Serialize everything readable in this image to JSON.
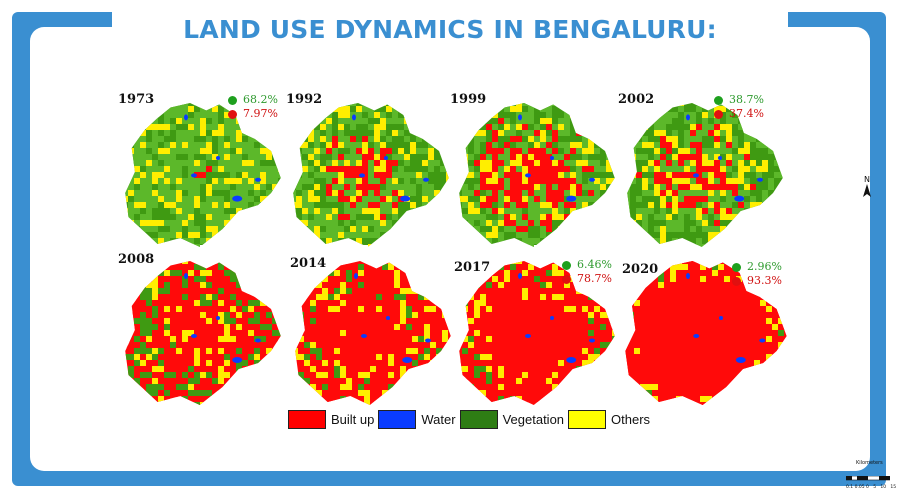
{
  "title": "LAND USE DYNAMICS IN BENGALURU:",
  "maps": [
    {
      "year": "1973",
      "vegetation_pct": "68.2%",
      "builtup_pct": "7.97%",
      "builtup_level": 0.08
    },
    {
      "year": "1992",
      "builtup_level": 0.32
    },
    {
      "year": "1999",
      "builtup_level": 0.45
    },
    {
      "year": "2002",
      "vegetation_pct": "38.7%",
      "builtup_pct": "37.4%",
      "builtup_level": 0.37
    },
    {
      "year": "2008",
      "builtup_level": 0.58
    },
    {
      "year": "2014",
      "builtup_level": 0.7
    },
    {
      "year": "2017",
      "vegetation_pct": "6.46%",
      "builtup_pct": "78.7%",
      "builtup_level": 0.79
    },
    {
      "year": "2020",
      "vegetation_pct": "2.96%",
      "builtup_pct": "93.3%",
      "builtup_level": 0.93
    }
  ],
  "legend": [
    {
      "label": "Built up",
      "color": "#ff0000"
    },
    {
      "label": "Water",
      "color": "#0a3cff"
    },
    {
      "label": "Vegetation",
      "color": "#2e7d14"
    },
    {
      "label": "Others",
      "color": "#ffff00"
    }
  ],
  "colors": {
    "accent": "#3a8fd1",
    "vegetation_text": "#2e9a2e",
    "builtup_text": "#d01010"
  },
  "north_label": "N",
  "scale_label": "Kilometers",
  "scale_ticks": "0.1 0.05 0   5   10   15"
}
